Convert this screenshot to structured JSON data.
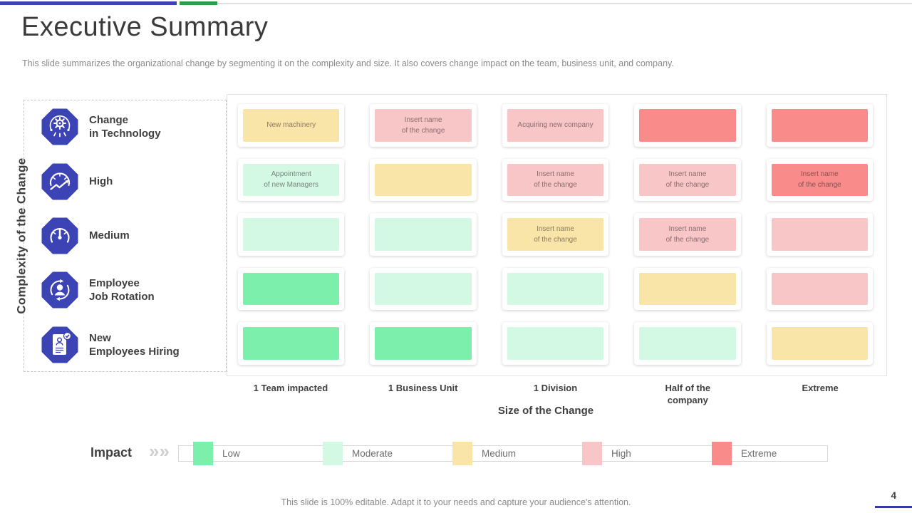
{
  "slide": {
    "title": "Executive Summary",
    "subtitle": "This slide summarizes the organizational change by segmenting it on the complexity and size. It also covers change impact on the team, business unit, and company.",
    "footer_note": "This slide is 100% editable. Adapt it to your needs and capture your audience's attention.",
    "page_number": "4"
  },
  "colors": {
    "accent_blue": "#3B43B5",
    "accent_green": "#2D9E49",
    "page_underline": "#333C96",
    "levels": {
      "low": "#7DEFAD",
      "moderate": "#D3F8E4",
      "medium": "#FAE5A9",
      "high": "#F9C6C8",
      "extreme": "#F98B8B"
    }
  },
  "y_axis": {
    "title": "Complexity of the Change",
    "rows": [
      {
        "icon": "technology-change-icon",
        "label": "Change\nin Technology"
      },
      {
        "icon": "high-gauge-icon",
        "label": "High"
      },
      {
        "icon": "medium-gauge-icon",
        "label": "Medium"
      },
      {
        "icon": "job-rotation-icon",
        "label": "Employee\nJob Rotation"
      },
      {
        "icon": "new-hiring-icon",
        "label": "New\nEmployees Hiring"
      }
    ]
  },
  "x_axis": {
    "title": "Size of the Change",
    "labels": [
      "1 Team impacted",
      "1 Business  Unit",
      "1 Division",
      "Half of the\ncompany",
      "Extreme"
    ]
  },
  "matrix": {
    "rows": [
      {
        "cells": [
          {
            "level": "medium",
            "text": "New machinery"
          },
          {
            "level": "high",
            "text": "Insert name\nof the change"
          },
          {
            "level": "high",
            "text": "Acquiring new company"
          },
          {
            "level": "extreme",
            "text": ""
          },
          {
            "level": "extreme",
            "text": ""
          }
        ]
      },
      {
        "cells": [
          {
            "level": "moderate",
            "text": "Appointment\nof new Managers"
          },
          {
            "level": "medium",
            "text": ""
          },
          {
            "level": "high",
            "text": "Insert name\nof the change"
          },
          {
            "level": "high",
            "text": "Insert name\nof the change"
          },
          {
            "level": "extreme",
            "text": "Insert name\nof the change"
          }
        ]
      },
      {
        "cells": [
          {
            "level": "moderate",
            "text": ""
          },
          {
            "level": "moderate",
            "text": ""
          },
          {
            "level": "medium",
            "text": "Insert name\nof the change"
          },
          {
            "level": "high",
            "text": "Insert name\nof the change"
          },
          {
            "level": "high",
            "text": ""
          }
        ]
      },
      {
        "cells": [
          {
            "level": "low",
            "text": ""
          },
          {
            "level": "moderate",
            "text": ""
          },
          {
            "level": "moderate",
            "text": ""
          },
          {
            "level": "medium",
            "text": ""
          },
          {
            "level": "high",
            "text": ""
          }
        ]
      },
      {
        "cells": [
          {
            "level": "low",
            "text": ""
          },
          {
            "level": "low",
            "text": ""
          },
          {
            "level": "moderate",
            "text": ""
          },
          {
            "level": "moderate",
            "text": ""
          },
          {
            "level": "medium",
            "text": ""
          }
        ]
      }
    ]
  },
  "legend": {
    "label": "Impact",
    "chevron": "»»",
    "items": [
      {
        "label": "Low",
        "level": "low"
      },
      {
        "label": "Moderate",
        "level": "moderate"
      },
      {
        "label": "Medium",
        "level": "medium"
      },
      {
        "label": "High",
        "level": "high"
      },
      {
        "label": "Extreme",
        "level": "extreme"
      }
    ]
  },
  "chart_data": {
    "type": "heatmap",
    "title": "Executive Summary",
    "xlabel": "Size of the Change",
    "ylabel": "Complexity of the Change",
    "x_categories": [
      "1 Team impacted",
      "1 Business Unit",
      "1 Division",
      "Half of the company",
      "Extreme"
    ],
    "y_categories": [
      "Change in Technology",
      "High",
      "Medium",
      "Employee Job Rotation",
      "New Employees Hiring"
    ],
    "impact_levels": [
      "Low",
      "Moderate",
      "Medium",
      "High",
      "Extreme"
    ],
    "legend_position": "bottom",
    "cells": [
      [
        "Medium",
        "High",
        "High",
        "Extreme",
        "Extreme"
      ],
      [
        "Moderate",
        "Medium",
        "High",
        "High",
        "Extreme"
      ],
      [
        "Moderate",
        "Moderate",
        "Medium",
        "High",
        "High"
      ],
      [
        "Low",
        "Moderate",
        "Moderate",
        "Medium",
        "High"
      ],
      [
        "Low",
        "Low",
        "Moderate",
        "Moderate",
        "Medium"
      ]
    ],
    "cell_labels": [
      [
        "New machinery",
        "Insert name of the change",
        "Acquiring new company",
        "",
        ""
      ],
      [
        "Appointment of new Managers",
        "",
        "Insert name of the change",
        "Insert name of the change",
        "Insert name of the change"
      ],
      [
        "",
        "",
        "Insert name of the change",
        "Insert name of the change",
        ""
      ],
      [
        "",
        "",
        "",
        "",
        ""
      ],
      [
        "",
        "",
        "",
        "",
        ""
      ]
    ]
  }
}
